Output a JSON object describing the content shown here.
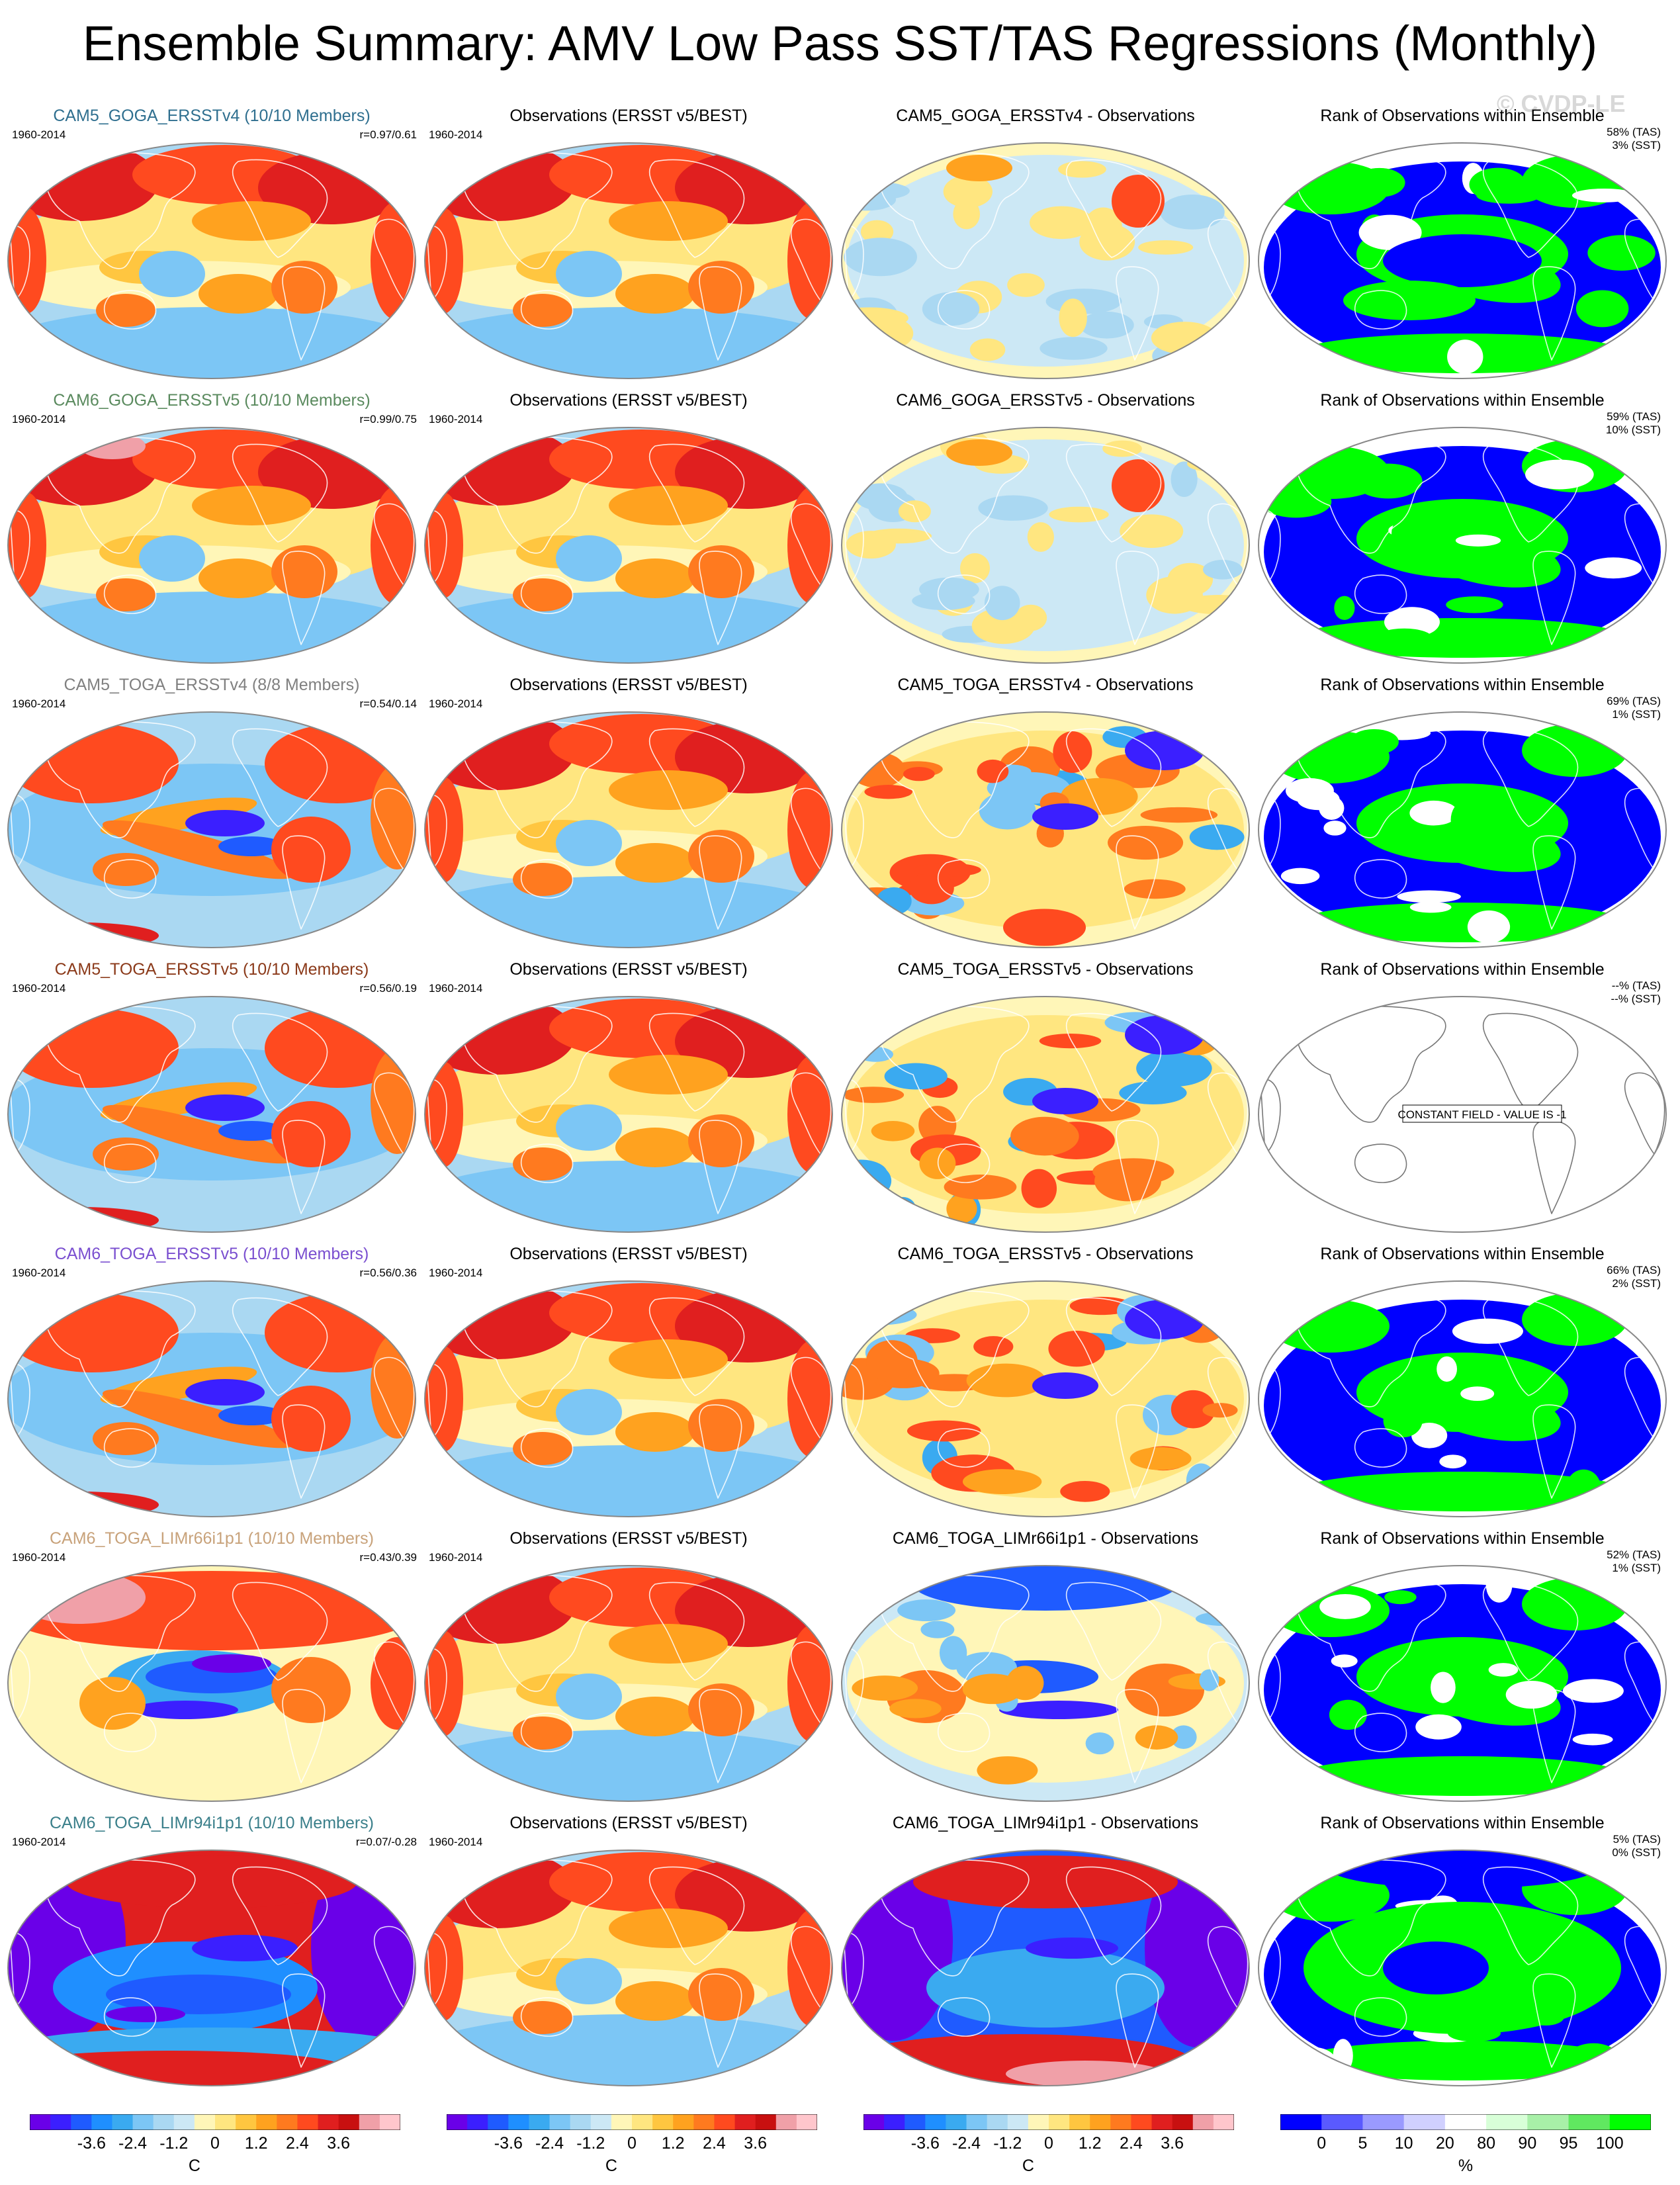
{
  "title": "Ensemble Summary: AMV Low Pass SST/TAS Regressions (Monthly)",
  "watermark": "© CVDP-LE",
  "period": "1960-2014",
  "obs_title": "Observations (ERSST v5/BEST)",
  "rank_title": "Rank of Observations within Ensemble",
  "constant_field_label": "CONSTANT FIELD - VALUE IS -1",
  "rows": [
    {
      "model": "CAM5_GOGA_ERSSTv4 (10/10 Members)",
      "model_color": "#2f6f8f",
      "r": "r=0.97/0.61",
      "diff": "CAM5_GOGA_ERSSTv4 - Observations",
      "tas": "58% (TAS)",
      "sst": "3% (SST)",
      "variant": "goga"
    },
    {
      "model": "CAM6_GOGA_ERSSTv5 (10/10 Members)",
      "model_color": "#5a8a5e",
      "r": "r=0.99/0.75",
      "diff": "CAM6_GOGA_ERSSTv5 - Observations",
      "tas": "59% (TAS)",
      "sst": "10% (SST)",
      "variant": "goga2"
    },
    {
      "model": "CAM5_TOGA_ERSSTv4 (8/8 Members)",
      "model_color": "#808080",
      "r": "r=0.54/0.14",
      "diff": "CAM5_TOGA_ERSSTv4 - Observations",
      "tas": "69% (TAS)",
      "sst": "1% (SST)",
      "variant": "toga"
    },
    {
      "model": "CAM5_TOGA_ERSSTv5 (10/10 Members)",
      "model_color": "#8b3a1a",
      "r": "r=0.56/0.19",
      "diff": "CAM5_TOGA_ERSSTv5 - Observations",
      "tas": "--% (TAS)",
      "sst": "--% (SST)",
      "variant": "toga",
      "constant": true
    },
    {
      "model": "CAM6_TOGA_ERSSTv5 (10/10 Members)",
      "model_color": "#7a4fd0",
      "r": "r=0.56/0.36",
      "diff": "CAM6_TOGA_ERSSTv5 - Observations",
      "tas": "66% (TAS)",
      "sst": "2% (SST)",
      "variant": "toga"
    },
    {
      "model": "CAM6_TOGA_LIMr66i1p1 (10/10 Members)",
      "model_color": "#c8a27a",
      "r": "r=0.43/0.39",
      "diff": "CAM6_TOGA_LIMr66i1p1 - Observations",
      "tas": "52% (TAS)",
      "sst": "1% (SST)",
      "variant": "lim66"
    },
    {
      "model": "CAM6_TOGA_LIMr94i1p1 (10/10 Members)",
      "model_color": "#3a7f8a",
      "r": "r=0.07/-0.28",
      "diff": "CAM6_TOGA_LIMr94i1p1 - Observations",
      "tas": "5% (TAS)",
      "sst": "0% (SST)",
      "variant": "lim94"
    }
  ],
  "colorbars": [
    {
      "ticks": [
        "-3.6",
        "-2.4",
        "-1.2",
        "0",
        "1.2",
        "2.4",
        "3.6"
      ],
      "unit": "C"
    },
    {
      "ticks": [
        "-3.6",
        "-2.4",
        "-1.2",
        "0",
        "1.2",
        "2.4",
        "3.6"
      ],
      "unit": "C"
    },
    {
      "ticks": [
        "-3.6",
        "-2.4",
        "-1.2",
        "0",
        "1.2",
        "2.4",
        "3.6"
      ],
      "unit": "C"
    },
    {
      "ticks": [
        "0",
        "5",
        "10",
        "20",
        "80",
        "90",
        "95",
        "100"
      ],
      "unit": "%"
    }
  ],
  "colors": {
    "temp_scale": [
      "#6a00e8",
      "#3b1fff",
      "#1f5bff",
      "#1f8fff",
      "#3aaaf0",
      "#7cc6f5",
      "#aad8f2",
      "#cce8f5",
      "#fff6b8",
      "#ffe680",
      "#ffc640",
      "#ffa21f",
      "#ff7a1f",
      "#ff4a1f",
      "#e01f1f",
      "#c81010",
      "#f0a0a8",
      "#ffc6cc"
    ],
    "rank_scale": [
      "#0000ff",
      "#5a5aff",
      "#9a9aff",
      "#d0d0ff",
      "#ffffff",
      "#d8ffd8",
      "#a8f0a8",
      "#60e860",
      "#00ff00"
    ]
  }
}
